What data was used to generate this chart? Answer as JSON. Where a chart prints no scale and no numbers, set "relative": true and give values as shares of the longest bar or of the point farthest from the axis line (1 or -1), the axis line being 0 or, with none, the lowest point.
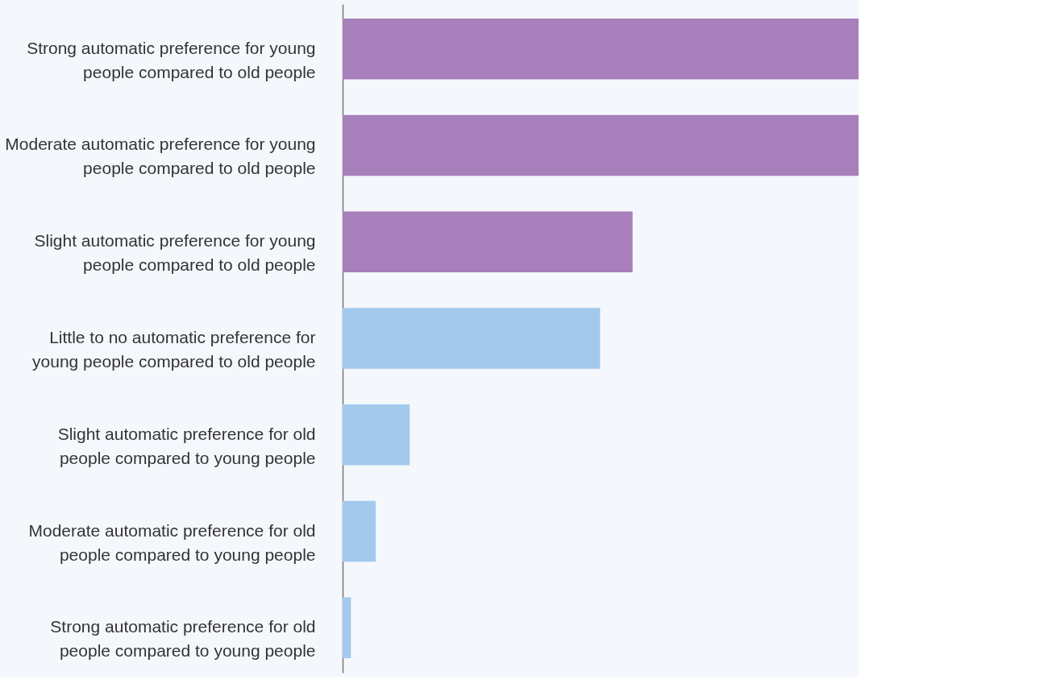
{
  "chart_data": {
    "type": "bar",
    "orientation": "horizontal",
    "relative": true,
    "categories": [
      "Strong automatic preference for young people compared to old people",
      "Moderate automatic preference for young people compared to old people",
      "Slight automatic preference for young people compared to old people",
      "Little to no automatic preference for young people compared to old people",
      "Slight automatic preference for old people compared to young people",
      "Moderate automatic preference for old people compared to young people",
      "Strong automatic preference for old people compared to young people"
    ],
    "values": [
      1,
      1,
      0.562,
      0.499,
      0.13,
      0.064,
      0.016
    ],
    "colors": [
      "#a77fbb",
      "#a77fbb",
      "#a77fbb",
      "#a3c9ec",
      "#a3c9ec",
      "#a3c9ec",
      "#a3c9ec"
    ]
  }
}
